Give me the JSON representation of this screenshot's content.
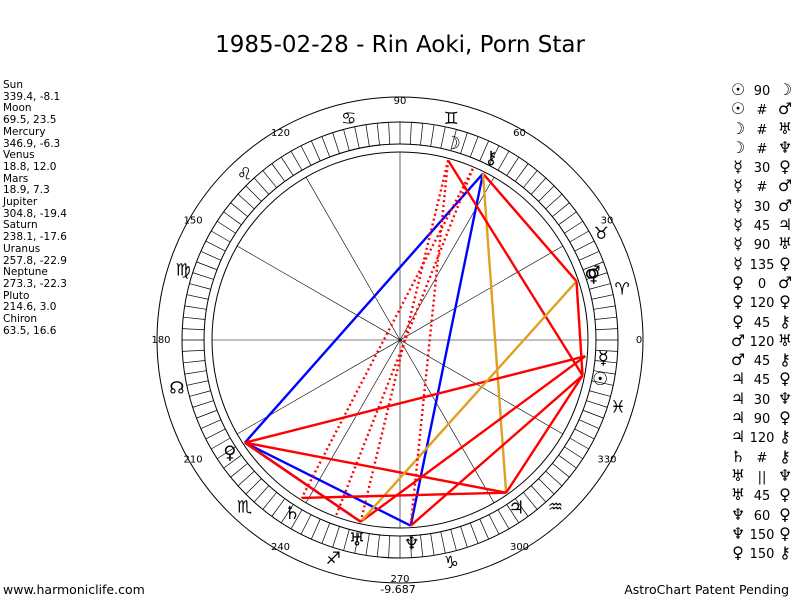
{
  "title": "1985-02-28 - Rin Aoki, Porn Star",
  "planets": [
    {
      "name": "Sun",
      "coords": "339.4, -8.1"
    },
    {
      "name": "Moon",
      "coords": "69.5, 23.5"
    },
    {
      "name": "Mercury",
      "coords": "346.9, -6.3"
    },
    {
      "name": "Venus",
      "coords": "18.8, 12.0"
    },
    {
      "name": "Mars",
      "coords": "18.9, 7.3"
    },
    {
      "name": "Jupiter",
      "coords": "304.8, -19.4"
    },
    {
      "name": "Saturn",
      "coords": "238.1, -17.6"
    },
    {
      "name": "Uranus",
      "coords": "257.8, -22.9"
    },
    {
      "name": "Neptune",
      "coords": "273.3, -22.3"
    },
    {
      "name": "Pluto",
      "coords": "214.6, 3.0"
    },
    {
      "name": "Chiron",
      "coords": "63.5, 16.6"
    }
  ],
  "aspects": [
    {
      "p1": "☉",
      "asp": "90",
      "p2": "☽"
    },
    {
      "p1": "☉",
      "asp": "#",
      "p2": "♂"
    },
    {
      "p1": "☽",
      "asp": "#",
      "p2": "♅"
    },
    {
      "p1": "☽",
      "asp": "#",
      "p2": "♆"
    },
    {
      "p1": "☿",
      "asp": "30",
      "p2": "♀"
    },
    {
      "p1": "☿",
      "asp": "#",
      "p2": "♂"
    },
    {
      "p1": "☿",
      "asp": "30",
      "p2": "♂"
    },
    {
      "p1": "☿",
      "asp": "45",
      "p2": "♃"
    },
    {
      "p1": "☿",
      "asp": "90",
      "p2": "♅"
    },
    {
      "p1": "☿",
      "asp": "135",
      "p2": "♀"
    },
    {
      "p1": "♀",
      "asp": "0",
      "p2": "♂"
    },
    {
      "p1": "♀",
      "asp": "120",
      "p2": "♀"
    },
    {
      "p1": "♀",
      "asp": "45",
      "p2": "⚷"
    },
    {
      "p1": "♂",
      "asp": "120",
      "p2": "♅"
    },
    {
      "p1": "♂",
      "asp": "45",
      "p2": "⚷"
    },
    {
      "p1": "♃",
      "asp": "45",
      "p2": "♀"
    },
    {
      "p1": "♃",
      "asp": "30",
      "p2": "♆"
    },
    {
      "p1": "♃",
      "asp": "90",
      "p2": "♀"
    },
    {
      "p1": "♃",
      "asp": "120",
      "p2": "⚷"
    },
    {
      "p1": "♄",
      "asp": "#",
      "p2": "⚷"
    },
    {
      "p1": "♅",
      "asp": "||",
      "p2": "♆"
    },
    {
      "p1": "♅",
      "asp": "45",
      "p2": "♀"
    },
    {
      "p1": "♆",
      "asp": "60",
      "p2": "♀"
    },
    {
      "p1": "♆",
      "asp": "150",
      "p2": "♀"
    },
    {
      "p1": "♀",
      "asp": "150",
      "p2": "⚷"
    }
  ],
  "wheel": {
    "degree_labels": [
      {
        "deg": 0,
        "text": "0"
      },
      {
        "deg": 30,
        "text": "30"
      },
      {
        "deg": 60,
        "text": "60"
      },
      {
        "deg": 90,
        "text": "90"
      },
      {
        "deg": 120,
        "text": "120"
      },
      {
        "deg": 150,
        "text": "150"
      },
      {
        "deg": 180,
        "text": "180"
      },
      {
        "deg": 210,
        "text": "210"
      },
      {
        "deg": 240,
        "text": "240"
      },
      {
        "deg": 270,
        "text": "270"
      },
      {
        "deg": 300,
        "text": "300"
      },
      {
        "deg": 330,
        "text": "330"
      }
    ],
    "decl_readout": "-9.687",
    "zodiac": [
      {
        "glyph": "♉",
        "deg": 28
      },
      {
        "glyph": "♊",
        "deg": 77
      },
      {
        "glyph": "♋",
        "deg": 103
      },
      {
        "glyph": "♌",
        "deg": 133
      },
      {
        "glyph": "♍",
        "deg": 162
      },
      {
        "glyph": "☊",
        "deg": 192
      },
      {
        "glyph": "♏",
        "deg": 227
      },
      {
        "glyph": "♐",
        "deg": 253
      },
      {
        "glyph": "♑",
        "deg": 283
      },
      {
        "glyph": "♒",
        "deg": 313
      },
      {
        "glyph": "♓",
        "deg": 343
      },
      {
        "glyph": "♈",
        "deg": 13
      }
    ],
    "bodies": [
      {
        "glyph": "☽",
        "deg": 75
      },
      {
        "glyph": "⚷",
        "deg": 63.5
      },
      {
        "glyph": "♂",
        "deg": 19.3
      },
      {
        "glyph": "♀",
        "deg": 18.4
      },
      {
        "glyph": "☿",
        "deg": 355
      },
      {
        "glyph": "☉",
        "deg": 349
      },
      {
        "glyph": "♃",
        "deg": 304.8
      },
      {
        "glyph": "♆",
        "deg": 273.3
      },
      {
        "glyph": "♅",
        "deg": 257.8
      },
      {
        "glyph": "♄",
        "deg": 238.1
      },
      {
        "glyph": "♀",
        "deg": 213.5
      }
    ],
    "colors": {
      "red": "#ff0000",
      "blue": "#0000ff",
      "gold": "#e0a020"
    }
  },
  "footer": {
    "left": "www.harmoniclife.com",
    "right": "AstroChart Patent Pending"
  }
}
